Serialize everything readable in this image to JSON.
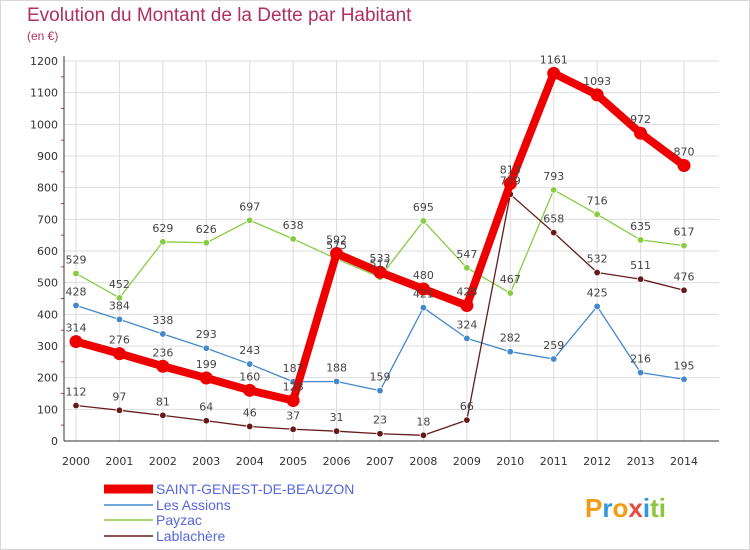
{
  "title": "Evolution du Montant de la Dette par Habitant",
  "unit": "(en €)",
  "brand": {
    "text": "Proxiti",
    "colors": [
      "#f39c12",
      "#3399dd",
      "#f39c12",
      "#e84c3d",
      "#3399dd",
      "#8cc63f",
      "#8cc63f"
    ]
  },
  "chart_data": {
    "type": "line",
    "x": [
      "2000",
      "2001",
      "2002",
      "2003",
      "2004",
      "2005",
      "2006",
      "2007",
      "2008",
      "2009",
      "2010",
      "2011",
      "2012",
      "2013",
      "2014"
    ],
    "yticks": [
      "0",
      "100",
      "200",
      "300",
      "400",
      "500",
      "600",
      "700",
      "800",
      "900",
      "1000",
      "1100",
      "1200"
    ],
    "ylim": [
      0,
      1200
    ],
    "grid": true,
    "legend_position": "bottom-left",
    "series": [
      {
        "name": "SAINT-GENEST-DE-BEAUZON",
        "color": "#ee0000",
        "values": [
          314,
          276,
          236,
          199,
          160,
          128,
          592,
          533,
          480,
          428,
          813,
          1161,
          1093,
          972,
          870
        ],
        "labels": [
          "314",
          "276",
          "236",
          "199",
          "160",
          "128",
          "592",
          "533",
          "480",
          "428",
          "813",
          "1161",
          "1093",
          "972",
          "870"
        ]
      },
      {
        "name": "Les Assions",
        "color": "#4488cc",
        "values": [
          428,
          384,
          338,
          293,
          243,
          187,
          188,
          159,
          421,
          324,
          282,
          259,
          425,
          216,
          195
        ],
        "labels": [
          "428",
          "384",
          "338",
          "293",
          "243",
          "187",
          "188",
          "159",
          "421",
          "324",
          "282",
          "259",
          "425",
          "216",
          "195"
        ]
      },
      {
        "name": "Payzac",
        "color": "#88cc44",
        "values": [
          529,
          452,
          629,
          626,
          697,
          638,
          575,
          517,
          695,
          547,
          467,
          793,
          716,
          635,
          617
        ],
        "labels": [
          "529",
          "452",
          "629",
          "626",
          "697",
          "638",
          "575",
          "517",
          "695",
          "547",
          "467",
          "793",
          "716",
          "635",
          "617"
        ]
      },
      {
        "name": "Lablachère",
        "color": "#661a1a",
        "values": [
          112,
          97,
          81,
          64,
          46,
          37,
          31,
          23,
          18,
          66,
          779,
          658,
          532,
          511,
          476
        ],
        "labels": [
          "112",
          "97",
          "81",
          "64",
          "46",
          "37",
          "31",
          "23",
          "18",
          "66",
          "779",
          "658",
          "532",
          "511",
          "476"
        ]
      }
    ]
  }
}
